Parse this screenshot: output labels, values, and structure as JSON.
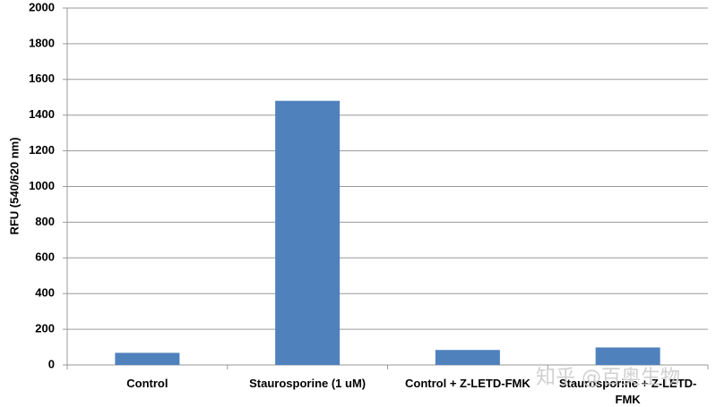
{
  "chart_data": {
    "type": "bar",
    "y_label": "RFU (540/620 nm)",
    "categories": [
      "Control",
      "Staurosporine (1 uM)",
      "Control + Z-LETD-FMK",
      "Staurosporine + Z-LETD-FMK"
    ],
    "values": [
      68,
      1480,
      84,
      98
    ],
    "color": "#4f81bd",
    "ylim": [
      0,
      2000
    ],
    "yticks": [
      0,
      200,
      400,
      600,
      800,
      1000,
      1200,
      1400,
      1600,
      1800,
      2000
    ],
    "grid": true,
    "watermark": "知乎 @百奥生物"
  }
}
